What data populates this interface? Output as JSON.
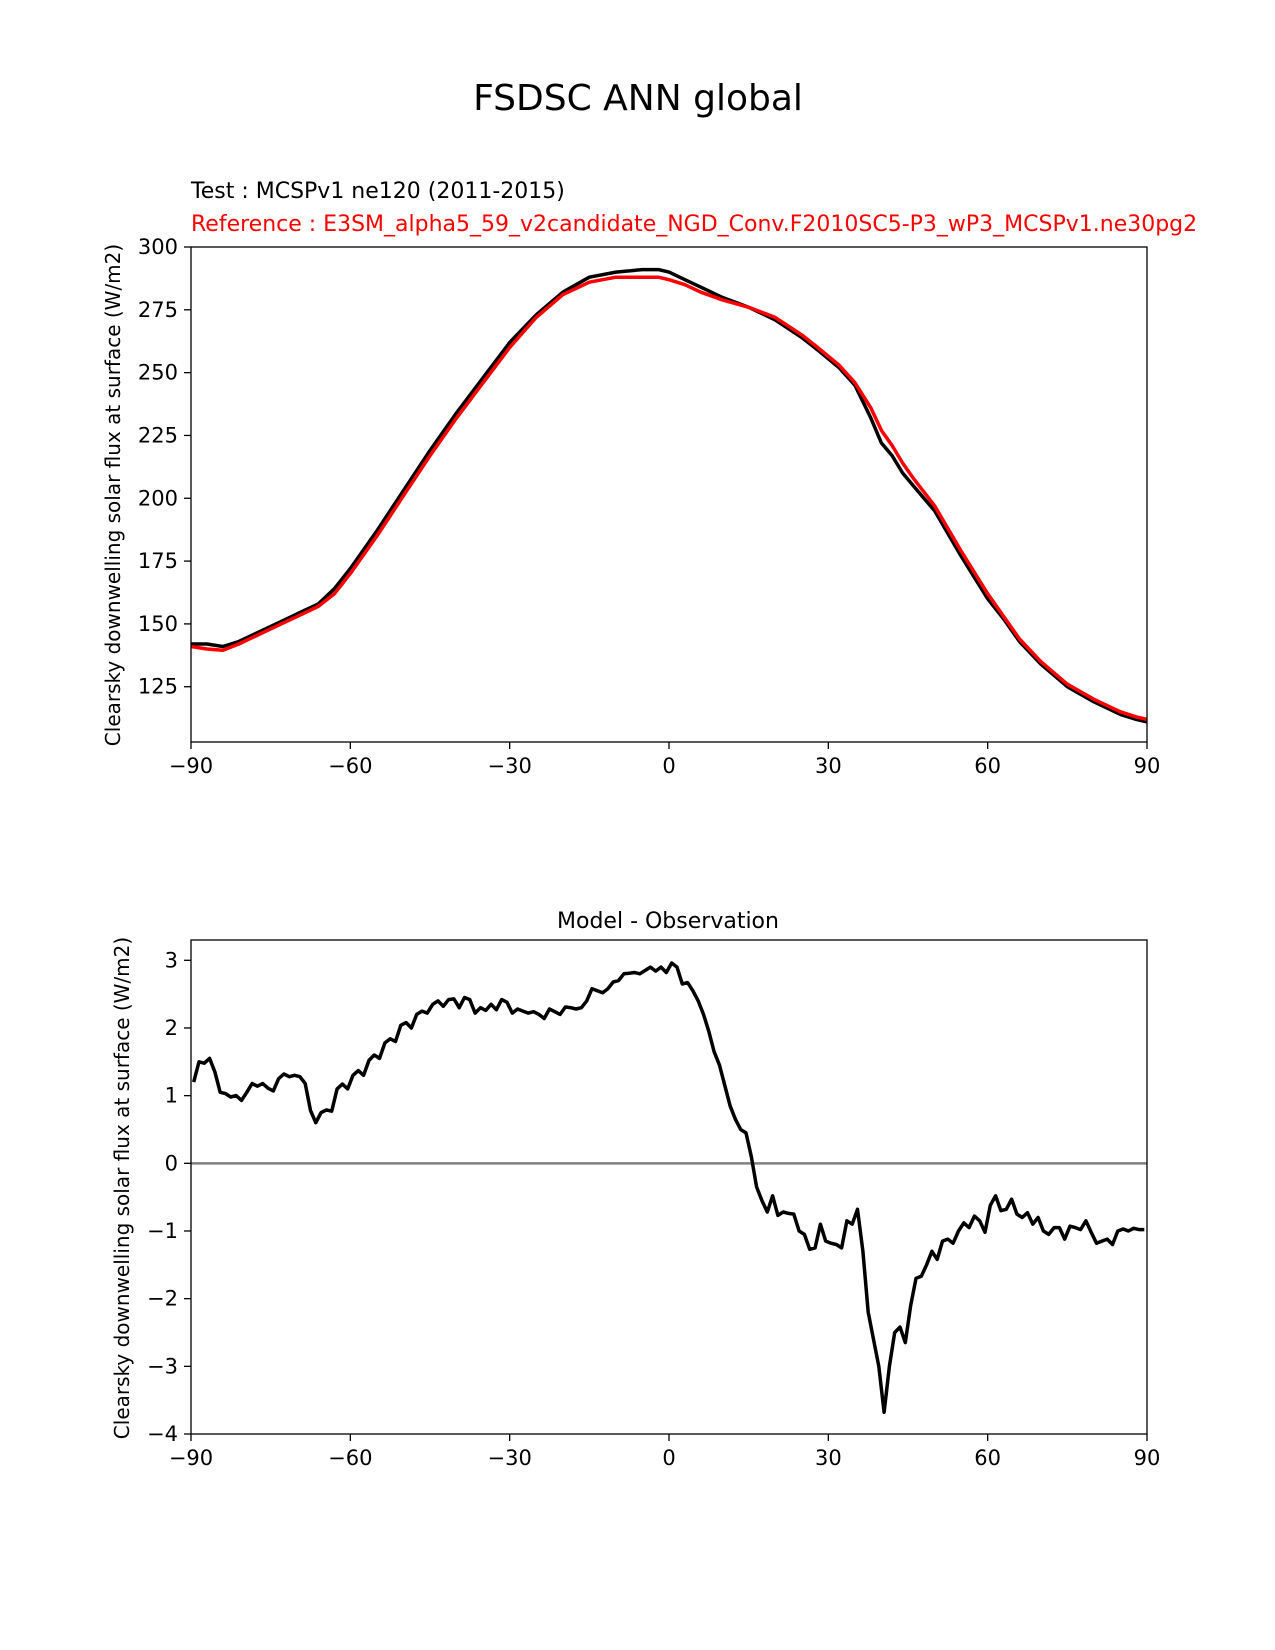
{
  "figure": {
    "suptitle": "FSDSC ANN global"
  },
  "chart_data": [
    {
      "type": "line",
      "test_label": "Test : MCSPv1 ne120 (2011-2015)",
      "reference_label": "Reference : E3SM_alpha5_59_v2candidate_NGD_Conv.F2010SC5-P3_wP3_MCSPv1.ne30pg2",
      "ylabel": "Clearsky downwelling solar flux at surface (W/m2)",
      "xlim": [
        -90,
        90
      ],
      "ylim": [
        103,
        300
      ],
      "xticks": [
        -90,
        -60,
        -30,
        0,
        30,
        60,
        90
      ],
      "xtick_labels": [
        "−90",
        "−60",
        "−30",
        "0",
        "30",
        "60",
        "90"
      ],
      "yticks": [
        125,
        150,
        175,
        200,
        225,
        250,
        275,
        300
      ],
      "ytick_labels": [
        "125",
        "150",
        "175",
        "200",
        "225",
        "250",
        "275",
        "300"
      ],
      "colors": {
        "test": "#000000",
        "reference": "#ff0000"
      },
      "series": [
        {
          "color": "#000000",
          "x": [
            -90,
            -87,
            -84,
            -81,
            -78,
            -75,
            -72,
            -69,
            -66,
            -63,
            -60,
            -55,
            -50,
            -45,
            -40,
            -35,
            -30,
            -25,
            -20,
            -15,
            -10,
            -5,
            -2,
            0,
            3,
            6,
            10,
            15,
            20,
            25,
            28,
            32,
            35,
            38,
            40,
            42,
            44,
            46,
            50,
            55,
            60,
            63,
            66,
            70,
            75,
            80,
            85,
            88,
            90
          ],
          "values": [
            142,
            142,
            141,
            143,
            146,
            149,
            152,
            155,
            158,
            164,
            172,
            187,
            203,
            219,
            234,
            248,
            262,
            273,
            282,
            288,
            290,
            291,
            291,
            290,
            287,
            284,
            280,
            276,
            271,
            264,
            259,
            252,
            245,
            232,
            222,
            217,
            210,
            205,
            195,
            177,
            160,
            152,
            143,
            134,
            125,
            119,
            114,
            112,
            111
          ]
        },
        {
          "color": "#ff0000",
          "x": [
            -90,
            -87,
            -84,
            -81,
            -78,
            -75,
            -72,
            -69,
            -66,
            -63,
            -60,
            -55,
            -50,
            -45,
            -40,
            -35,
            -30,
            -25,
            -20,
            -15,
            -10,
            -5,
            -2,
            0,
            3,
            6,
            10,
            15,
            20,
            25,
            28,
            32,
            35,
            38,
            40,
            42,
            44,
            46,
            50,
            55,
            60,
            63,
            66,
            70,
            75,
            80,
            85,
            88,
            90
          ],
          "values": [
            141,
            140,
            139.5,
            142,
            145,
            148,
            151,
            154,
            157,
            162,
            170,
            185,
            201,
            217,
            232,
            246,
            260,
            272,
            281,
            286,
            288,
            288,
            288,
            287,
            285,
            282,
            279,
            276,
            272,
            265,
            260,
            253,
            246,
            236,
            227,
            221,
            214,
            208,
            197,
            179,
            162,
            153,
            144,
            135,
            126,
            120,
            115,
            113,
            112
          ]
        }
      ]
    },
    {
      "type": "line",
      "title": "Model - Observation",
      "ylabel": "Clearsky downwelling solar flux at surface (W/m2)",
      "xlim": [
        -90,
        90
      ],
      "ylim": [
        -4,
        3.3
      ],
      "xticks": [
        -90,
        -60,
        -30,
        0,
        30,
        60,
        90
      ],
      "xtick_labels": [
        "−90",
        "−60",
        "−30",
        "0",
        "30",
        "60",
        "90"
      ],
      "yticks": [
        -4,
        -3,
        -2,
        -1,
        0,
        1,
        2,
        3
      ],
      "ytick_labels": [
        "−4",
        "−3",
        "−2",
        "−1",
        "0",
        "1",
        "2",
        "3"
      ],
      "zero_line": {
        "value": 0,
        "color": "#808080"
      },
      "series": [
        {
          "color": "#000000",
          "x": [
            -89.5,
            -88.5,
            -87.5,
            -86.5,
            -85.5,
            -84.5,
            -83.5,
            -82.5,
            -81.5,
            -80.5,
            -79.5,
            -78.5,
            -77.5,
            -76.5,
            -75.5,
            -74.5,
            -73.5,
            -72.5,
            -71.5,
            -70.5,
            -69.5,
            -68.5,
            -67.5,
            -66.5,
            -65.5,
            -64.5,
            -63.5,
            -62.5,
            -61.5,
            -60.5,
            -59.5,
            -58.5,
            -57.5,
            -56.5,
            -55.5,
            -54.5,
            -53.5,
            -52.5,
            -51.5,
            -50.5,
            -49.5,
            -48.5,
            -47.5,
            -46.5,
            -45.5,
            -44.5,
            -43.5,
            -42.5,
            -41.5,
            -40.5,
            -39.5,
            -38.5,
            -37.5,
            -36.5,
            -35.5,
            -34.5,
            -33.5,
            -32.5,
            -31.5,
            -30.5,
            -29.5,
            -28.5,
            -27.5,
            -26.5,
            -25.5,
            -24.5,
            -23.5,
            -22.5,
            -21.5,
            -20.5,
            -19.5,
            -18.5,
            -17.5,
            -16.5,
            -15.5,
            -14.5,
            -13.5,
            -12.5,
            -11.5,
            -10.5,
            -9.5,
            -8.5,
            -7.5,
            -6.5,
            -5.5,
            -4.5,
            -3.5,
            -2.5,
            -1.5,
            -0.5,
            0.5,
            1.5,
            2.5,
            3.5,
            4.5,
            5.5,
            6.5,
            7.5,
            8.5,
            9.5,
            10.5,
            11.5,
            12.5,
            13.5,
            14.5,
            15.5,
            16.5,
            17.5,
            18.5,
            19.5,
            20.5,
            21.5,
            22.5,
            23.5,
            24.5,
            25.5,
            26.5,
            27.5,
            28.5,
            29.5,
            30.5,
            31.5,
            32.5,
            33.5,
            34.5,
            35.5,
            36.5,
            37.5,
            38.5,
            39.5,
            40.5,
            41.5,
            42.5,
            43.5,
            44.5,
            45.5,
            46.5,
            47.5,
            48.5,
            49.5,
            50.5,
            51.5,
            52.5,
            53.5,
            54.5,
            55.5,
            56.5,
            57.5,
            58.5,
            59.5,
            60.5,
            61.5,
            62.5,
            63.5,
            64.5,
            65.5,
            66.5,
            67.5,
            68.5,
            69.5,
            70.5,
            71.5,
            72.5,
            73.5,
            74.5,
            75.5,
            76.5,
            77.5,
            78.5,
            79.5,
            80.5,
            81.5,
            82.5,
            83.5,
            84.5,
            85.5,
            86.5,
            87.5,
            88.5,
            89.5
          ],
          "values": [
            1.2,
            1.5,
            1.48,
            1.55,
            1.35,
            1.05,
            1.03,
            0.98,
            1.0,
            0.93,
            1.05,
            1.18,
            1.14,
            1.18,
            1.11,
            1.07,
            1.25,
            1.32,
            1.28,
            1.3,
            1.28,
            1.18,
            0.78,
            0.6,
            0.75,
            0.79,
            0.77,
            1.1,
            1.17,
            1.1,
            1.3,
            1.37,
            1.3,
            1.52,
            1.6,
            1.55,
            1.78,
            1.84,
            1.8,
            2.04,
            2.08,
            2.0,
            2.2,
            2.25,
            2.22,
            2.35,
            2.4,
            2.32,
            2.42,
            2.43,
            2.3,
            2.45,
            2.42,
            2.22,
            2.3,
            2.26,
            2.35,
            2.27,
            2.42,
            2.38,
            2.22,
            2.28,
            2.25,
            2.22,
            2.24,
            2.2,
            2.14,
            2.28,
            2.24,
            2.2,
            2.31,
            2.3,
            2.28,
            2.3,
            2.4,
            2.58,
            2.55,
            2.52,
            2.58,
            2.68,
            2.7,
            2.8,
            2.81,
            2.82,
            2.8,
            2.85,
            2.9,
            2.84,
            2.9,
            2.82,
            2.96,
            2.9,
            2.65,
            2.67,
            2.55,
            2.4,
            2.2,
            1.95,
            1.65,
            1.45,
            1.15,
            0.85,
            0.65,
            0.5,
            0.45,
            0.1,
            -0.35,
            -0.55,
            -0.72,
            -0.48,
            -0.77,
            -0.72,
            -0.74,
            -0.75,
            -1.0,
            -1.05,
            -1.27,
            -1.25,
            -0.9,
            -1.15,
            -1.18,
            -1.2,
            -1.25,
            -0.85,
            -0.9,
            -0.68,
            -1.3,
            -2.2,
            -2.6,
            -3.0,
            -3.68,
            -3.0,
            -2.5,
            -2.42,
            -2.65,
            -2.1,
            -1.7,
            -1.67,
            -1.5,
            -1.3,
            -1.42,
            -1.15,
            -1.12,
            -1.18,
            -1.0,
            -0.88,
            -0.95,
            -0.78,
            -0.85,
            -1.02,
            -0.62,
            -0.48,
            -0.7,
            -0.68,
            -0.53,
            -0.75,
            -0.8,
            -0.73,
            -0.9,
            -0.8,
            -1.0,
            -1.05,
            -0.95,
            -0.95,
            -1.12,
            -0.93,
            -0.95,
            -0.98,
            -0.85,
            -1.02,
            -1.18,
            -1.15,
            -1.12,
            -1.2,
            -1.0,
            -0.97,
            -1.0,
            -0.96,
            -0.98,
            -0.98
          ]
        }
      ]
    }
  ]
}
